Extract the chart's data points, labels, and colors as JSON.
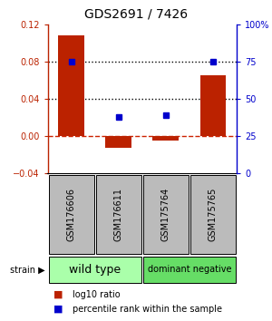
{
  "title": "GDS2691 / 7426",
  "samples": [
    "GSM176606",
    "GSM176611",
    "GSM175764",
    "GSM175765"
  ],
  "log10_ratio": [
    0.108,
    -0.013,
    -0.005,
    0.065
  ],
  "percentile_rank": [
    75,
    38,
    39,
    75
  ],
  "bar_color": "#bb2200",
  "dot_color": "#0000cc",
  "ylim_left": [
    -0.04,
    0.12
  ],
  "ylim_right": [
    0,
    100
  ],
  "yticks_left": [
    -0.04,
    0,
    0.04,
    0.08,
    0.12
  ],
  "yticks_right": [
    0,
    25,
    50,
    75,
    100
  ],
  "ytick_labels_right": [
    "0",
    "25",
    "50",
    "75",
    "100%"
  ],
  "hlines": [
    0.04,
    0.08
  ],
  "hline_zero_color": "#cc2200",
  "hline_dotted_color": "#000000",
  "group_data": [
    {
      "label": "wild type",
      "start": 0,
      "end": 2,
      "color": "#aaffaa"
    },
    {
      "label": "dominant negative",
      "start": 2,
      "end": 4,
      "color": "#66dd66"
    }
  ],
  "strain_label": "strain",
  "legend_items": [
    {
      "label": "log10 ratio",
      "color": "#bb2200"
    },
    {
      "label": "percentile rank within the sample",
      "color": "#0000cc"
    }
  ],
  "bar_width": 0.55,
  "sample_box_color": "#bbbbbb",
  "background_color": "#ffffff",
  "title_fontsize": 10,
  "tick_fontsize": 7,
  "sample_label_fontsize": 7,
  "group_label_fontsize_wt": 9,
  "group_label_fontsize_dn": 7,
  "legend_fontsize": 7
}
